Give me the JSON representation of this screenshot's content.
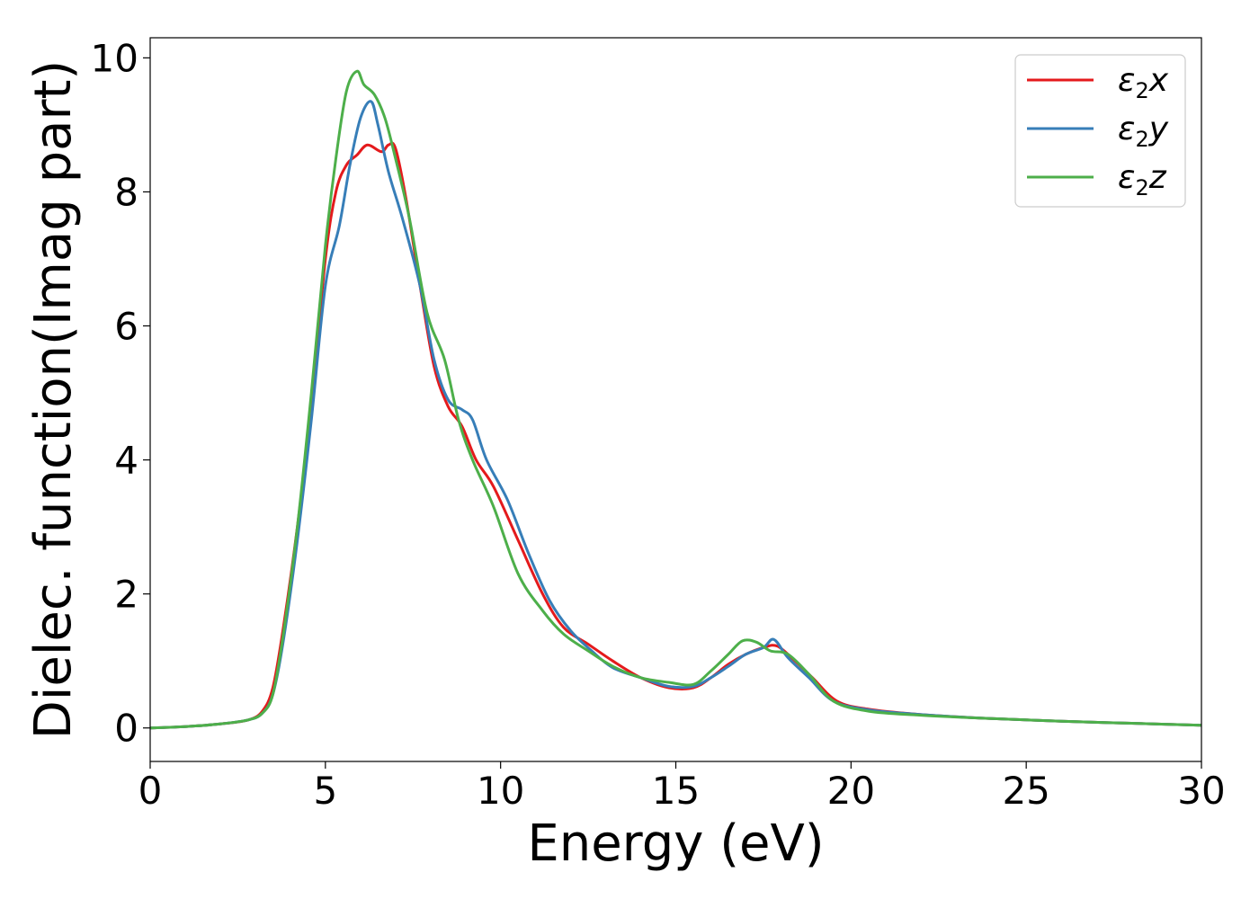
{
  "chart_data": {
    "type": "line",
    "xlabel": "Energy (eV)",
    "ylabel": "Dielec. function(Imag part)",
    "xlim": [
      0,
      30
    ],
    "ylim": [
      -0.5,
      10.3
    ],
    "xticks": [
      0,
      5,
      10,
      15,
      20,
      25,
      30
    ],
    "yticks": [
      0,
      2,
      4,
      6,
      8,
      10
    ],
    "grid": false,
    "legend_position": "top-right",
    "series": [
      {
        "name": "ε2x",
        "legend": {
          "base": "ε",
          "sub": "2",
          "var": "x"
        },
        "color": "#e41a1c",
        "points": [
          [
            0,
            0
          ],
          [
            1,
            0.02
          ],
          [
            2,
            0.06
          ],
          [
            2.8,
            0.12
          ],
          [
            3.2,
            0.25
          ],
          [
            3.5,
            0.6
          ],
          [
            3.8,
            1.5
          ],
          [
            4.2,
            3.0
          ],
          [
            4.6,
            4.8
          ],
          [
            5.0,
            7.0
          ],
          [
            5.3,
            8.0
          ],
          [
            5.6,
            8.4
          ],
          [
            5.9,
            8.55
          ],
          [
            6.2,
            8.7
          ],
          [
            6.6,
            8.6
          ],
          [
            6.8,
            8.7
          ],
          [
            7.0,
            8.65
          ],
          [
            7.3,
            7.9
          ],
          [
            7.7,
            6.6
          ],
          [
            8.1,
            5.4
          ],
          [
            8.5,
            4.8
          ],
          [
            8.9,
            4.5
          ],
          [
            9.3,
            4.0
          ],
          [
            9.8,
            3.6
          ],
          [
            10.5,
            2.8
          ],
          [
            11.2,
            2.0
          ],
          [
            11.8,
            1.5
          ],
          [
            12.5,
            1.25
          ],
          [
            13.2,
            1.0
          ],
          [
            14.0,
            0.75
          ],
          [
            14.8,
            0.6
          ],
          [
            15.5,
            0.6
          ],
          [
            16.0,
            0.75
          ],
          [
            16.5,
            0.95
          ],
          [
            17.0,
            1.1
          ],
          [
            17.5,
            1.2
          ],
          [
            17.9,
            1.22
          ],
          [
            18.4,
            1.0
          ],
          [
            18.9,
            0.75
          ],
          [
            19.6,
            0.4
          ],
          [
            20.5,
            0.28
          ],
          [
            22,
            0.2
          ],
          [
            24,
            0.14
          ],
          [
            26,
            0.1
          ],
          [
            28,
            0.07
          ],
          [
            30,
            0.04
          ]
        ]
      },
      {
        "name": "ε2y",
        "legend": {
          "base": "ε",
          "sub": "2",
          "var": "y"
        },
        "color": "#377eb8",
        "points": [
          [
            0,
            0
          ],
          [
            1,
            0.02
          ],
          [
            2,
            0.06
          ],
          [
            2.8,
            0.12
          ],
          [
            3.2,
            0.22
          ],
          [
            3.5,
            0.5
          ],
          [
            3.8,
            1.3
          ],
          [
            4.2,
            2.8
          ],
          [
            4.6,
            4.6
          ],
          [
            5.0,
            6.6
          ],
          [
            5.4,
            7.5
          ],
          [
            5.7,
            8.4
          ],
          [
            6.0,
            9.1
          ],
          [
            6.3,
            9.35
          ],
          [
            6.5,
            9.0
          ],
          [
            6.8,
            8.3
          ],
          [
            7.2,
            7.6
          ],
          [
            7.7,
            6.6
          ],
          [
            8.1,
            5.5
          ],
          [
            8.5,
            4.9
          ],
          [
            8.9,
            4.75
          ],
          [
            9.2,
            4.6
          ],
          [
            9.6,
            4.0
          ],
          [
            10.2,
            3.4
          ],
          [
            10.8,
            2.6
          ],
          [
            11.4,
            1.9
          ],
          [
            12.0,
            1.45
          ],
          [
            12.6,
            1.15
          ],
          [
            13.2,
            0.9
          ],
          [
            14.0,
            0.75
          ],
          [
            14.8,
            0.62
          ],
          [
            15.5,
            0.62
          ],
          [
            16.0,
            0.75
          ],
          [
            16.5,
            0.92
          ],
          [
            17.0,
            1.1
          ],
          [
            17.5,
            1.2
          ],
          [
            17.8,
            1.32
          ],
          [
            18.2,
            1.05
          ],
          [
            18.8,
            0.75
          ],
          [
            19.5,
            0.4
          ],
          [
            20.5,
            0.27
          ],
          [
            22,
            0.2
          ],
          [
            24,
            0.14
          ],
          [
            26,
            0.1
          ],
          [
            28,
            0.07
          ],
          [
            30,
            0.04
          ]
        ]
      },
      {
        "name": "ε2z",
        "legend": {
          "base": "ε",
          "sub": "2",
          "var": "z"
        },
        "color": "#4daf4a",
        "points": [
          [
            0,
            0
          ],
          [
            1,
            0.02
          ],
          [
            2,
            0.06
          ],
          [
            2.8,
            0.12
          ],
          [
            3.2,
            0.22
          ],
          [
            3.5,
            0.5
          ],
          [
            3.8,
            1.4
          ],
          [
            4.2,
            3.0
          ],
          [
            4.6,
            5.0
          ],
          [
            5.0,
            7.2
          ],
          [
            5.3,
            8.5
          ],
          [
            5.6,
            9.5
          ],
          [
            5.9,
            9.8
          ],
          [
            6.1,
            9.6
          ],
          [
            6.4,
            9.45
          ],
          [
            6.7,
            9.1
          ],
          [
            7.0,
            8.5
          ],
          [
            7.4,
            7.6
          ],
          [
            7.9,
            6.2
          ],
          [
            8.4,
            5.5
          ],
          [
            8.8,
            4.6
          ],
          [
            9.2,
            4.0
          ],
          [
            9.8,
            3.3
          ],
          [
            10.5,
            2.3
          ],
          [
            11.2,
            1.75
          ],
          [
            11.8,
            1.4
          ],
          [
            12.5,
            1.15
          ],
          [
            13.2,
            0.92
          ],
          [
            14.0,
            0.75
          ],
          [
            14.8,
            0.68
          ],
          [
            15.5,
            0.65
          ],
          [
            16.0,
            0.85
          ],
          [
            16.5,
            1.1
          ],
          [
            16.9,
            1.3
          ],
          [
            17.3,
            1.28
          ],
          [
            17.7,
            1.15
          ],
          [
            18.2,
            1.1
          ],
          [
            18.8,
            0.8
          ],
          [
            19.5,
            0.4
          ],
          [
            20.5,
            0.25
          ],
          [
            22,
            0.19
          ],
          [
            24,
            0.14
          ],
          [
            26,
            0.1
          ],
          [
            28,
            0.07
          ],
          [
            30,
            0.04
          ]
        ]
      }
    ]
  }
}
